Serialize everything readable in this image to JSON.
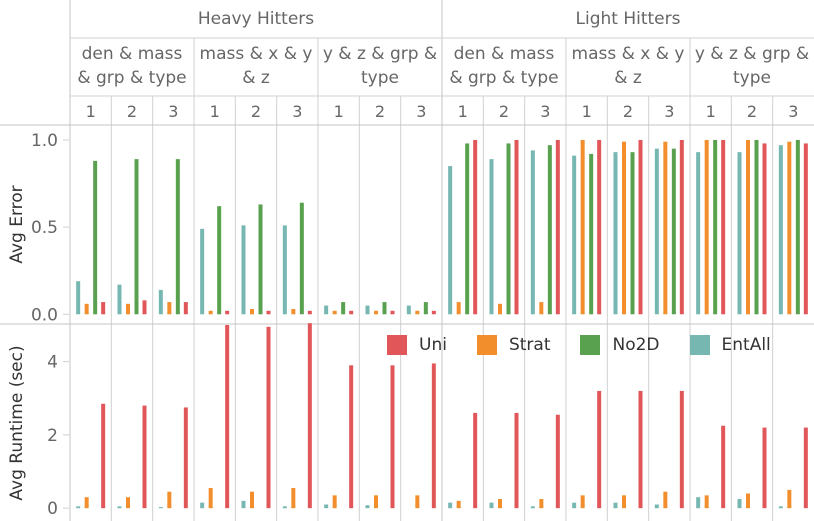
{
  "chart_data": {
    "type": "bar",
    "top_groups": [
      "Heavy Hitters",
      "Light Hitters"
    ],
    "sub_groups": [
      [
        "den & mass",
        "& grp & type"
      ],
      [
        "mass & x & y",
        "& z"
      ],
      [
        "y & z & grp &",
        "type"
      ]
    ],
    "columns": [
      "1",
      "2",
      "3"
    ],
    "legend": [
      {
        "name": "Uni",
        "color": "#e15759"
      },
      {
        "name": "Strat",
        "color": "#f28e2b"
      },
      {
        "name": "No2D",
        "color": "#59a14f"
      },
      {
        "name": "EntAll",
        "color": "#76b7b2"
      }
    ],
    "panels": [
      {
        "ylabel": "Avg Error",
        "ylim": [
          -0.05,
          1.08
        ],
        "yticks": [
          {
            "v": 0,
            "label": "0.0"
          },
          {
            "v": 0.5,
            "label": "0.5"
          },
          {
            "v": 1.0,
            "label": "1.0"
          }
        ],
        "order": [
          "EntAll",
          "Strat",
          "No2D",
          "Uni"
        ],
        "values": [
          [
            [
              0.19,
              0.06,
              0.88,
              0.07
            ],
            [
              0.17,
              0.06,
              0.89,
              0.08
            ],
            [
              0.14,
              0.07,
              0.89,
              0.07
            ]
          ],
          [
            [
              0.49,
              0.02,
              0.62,
              0.02
            ],
            [
              0.51,
              0.03,
              0.63,
              0.02
            ],
            [
              0.51,
              0.03,
              0.64,
              0.02
            ]
          ],
          [
            [
              0.05,
              0.02,
              0.07,
              0.02
            ],
            [
              0.05,
              0.02,
              0.07,
              0.02
            ],
            [
              0.05,
              0.02,
              0.07,
              0.02
            ]
          ],
          [
            [
              0.85,
              0.07,
              0.98,
              1.0
            ],
            [
              0.89,
              0.06,
              0.98,
              1.0
            ],
            [
              0.94,
              0.07,
              0.97,
              1.0
            ]
          ],
          [
            [
              0.91,
              1.0,
              0.92,
              1.0
            ],
            [
              0.93,
              0.99,
              0.93,
              1.0
            ],
            [
              0.95,
              0.99,
              0.95,
              1.0
            ]
          ],
          [
            [
              0.93,
              1.0,
              1.0,
              1.0
            ],
            [
              0.93,
              1.0,
              1.0,
              0.98
            ],
            [
              0.97,
              0.99,
              1.0,
              0.98
            ]
          ]
        ]
      },
      {
        "ylabel": "Avg Runtime (sec)",
        "ylim": [
          -0.35,
          5.0
        ],
        "yticks": [
          {
            "v": 0,
            "label": "0"
          },
          {
            "v": 2,
            "label": "2"
          },
          {
            "v": 4,
            "label": "4"
          }
        ],
        "order": [
          "EntAll",
          "Strat",
          "No2D",
          "Uni"
        ],
        "values": [
          [
            [
              0.05,
              0.3,
              0,
              2.85
            ],
            [
              0.05,
              0.3,
              0,
              2.8
            ],
            [
              0.03,
              0.45,
              0,
              2.75
            ]
          ],
          [
            [
              0.15,
              0.55,
              0,
              5.0
            ],
            [
              0.2,
              0.45,
              0,
              4.95
            ],
            [
              0.05,
              0.55,
              0,
              5.05
            ]
          ],
          [
            [
              0.1,
              0.35,
              0,
              3.9
            ],
            [
              0.08,
              0.35,
              0,
              3.9
            ],
            [
              0.0,
              0.35,
              0,
              3.95
            ]
          ],
          [
            [
              0.15,
              0.2,
              0,
              2.6
            ],
            [
              0.15,
              0.25,
              0,
              2.6
            ],
            [
              0.05,
              0.25,
              0,
              2.55
            ]
          ],
          [
            [
              0.15,
              0.35,
              0,
              3.2
            ],
            [
              0.15,
              0.35,
              0,
              3.2
            ],
            [
              0.1,
              0.45,
              0,
              3.2
            ]
          ],
          [
            [
              0.3,
              0.35,
              0,
              2.25
            ],
            [
              0.25,
              0.4,
              0,
              2.2
            ],
            [
              0.05,
              0.5,
              0,
              2.2
            ]
          ]
        ]
      }
    ],
    "grid": true,
    "legend_position": "top-right of runtime panel"
  }
}
